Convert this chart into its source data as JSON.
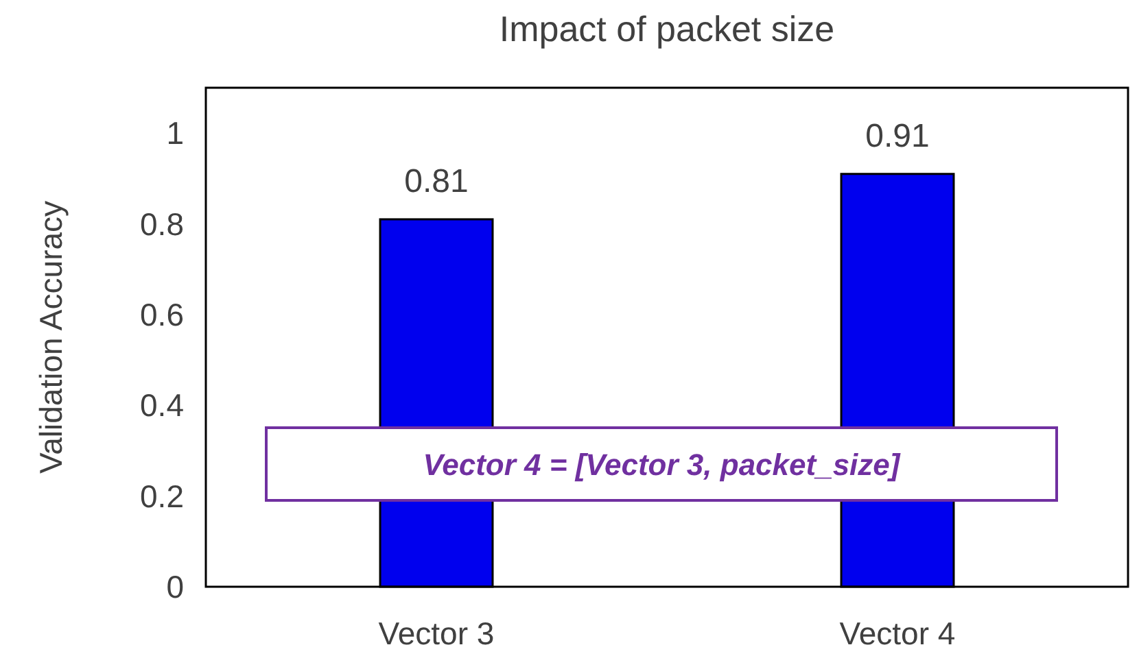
{
  "chart_data": {
    "type": "bar",
    "title": "Impact of packet size",
    "ylabel": "Validation Accuracy",
    "categories": [
      "Vector 3",
      "Vector 4"
    ],
    "values": [
      0.81,
      0.91
    ],
    "color": "#0000ee",
    "ylim": [
      0,
      1.1
    ],
    "yticks": [
      0,
      0.2,
      0.4,
      0.6,
      0.8,
      1
    ],
    "grid": false,
    "data_labels": true,
    "annotations": [
      "Vector 4 = [Vector 3, packet_size]"
    ]
  }
}
